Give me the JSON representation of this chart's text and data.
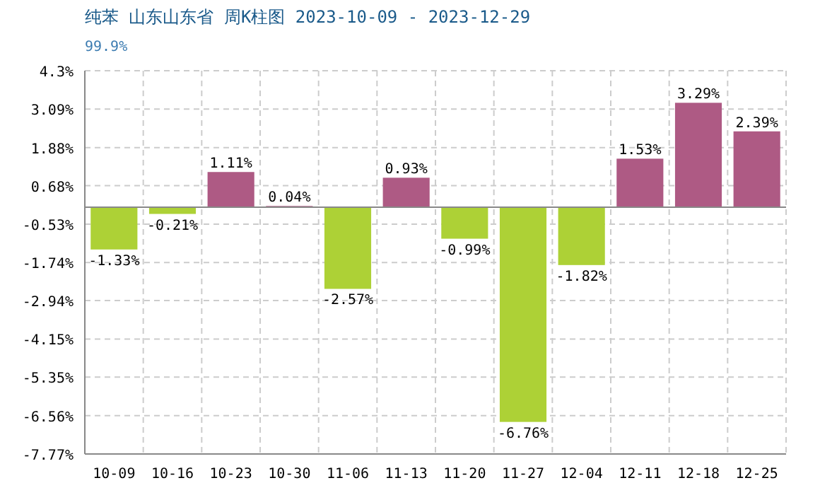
{
  "chart_data": {
    "type": "bar",
    "title": "纯苯 山东山东省 周K柱图 2023-10-09 - 2023-12-29",
    "subtitle": "99.9%",
    "categories": [
      "10-09",
      "10-16",
      "10-23",
      "10-30",
      "11-06",
      "11-13",
      "11-20",
      "11-27",
      "12-04",
      "12-11",
      "12-18",
      "12-25"
    ],
    "values": [
      -1.33,
      -0.21,
      1.11,
      0.04,
      -2.57,
      0.93,
      -0.99,
      -6.76,
      -1.82,
      1.53,
      3.29,
      2.39
    ],
    "colors": [
      "#add136",
      "#add136",
      "#ae5a84",
      "#ae5a84",
      "#add136",
      "#ae5a84",
      "#add136",
      "#add136",
      "#add136",
      "#ae5a84",
      "#ae5a84",
      "#ae5a84"
    ],
    "value_labels": [
      "-1.33%",
      "-0.21%",
      "1.11%",
      "0.04%",
      "-2.57%",
      "0.93%",
      "-0.99%",
      "-6.76%",
      "-1.82%",
      "1.53%",
      "3.29%",
      "2.39%"
    ],
    "ylim": [
      -7.77,
      4.3
    ],
    "yticks": [
      {
        "value": 4.3,
        "label": "4.3%"
      },
      {
        "value": 3.09,
        "label": "3.09%"
      },
      {
        "value": 1.88,
        "label": "1.88%"
      },
      {
        "value": 0.68,
        "label": "0.68%"
      },
      {
        "value": -0.53,
        "label": "-0.53%"
      },
      {
        "value": -1.74,
        "label": "-1.74%"
      },
      {
        "value": -2.94,
        "label": "-2.94%"
      },
      {
        "value": -4.15,
        "label": "-4.15%"
      },
      {
        "value": -5.35,
        "label": "-5.35%"
      },
      {
        "value": -6.56,
        "label": "-6.56%"
      },
      {
        "value": -7.77,
        "label": "-7.77%"
      }
    ],
    "grid": true
  }
}
